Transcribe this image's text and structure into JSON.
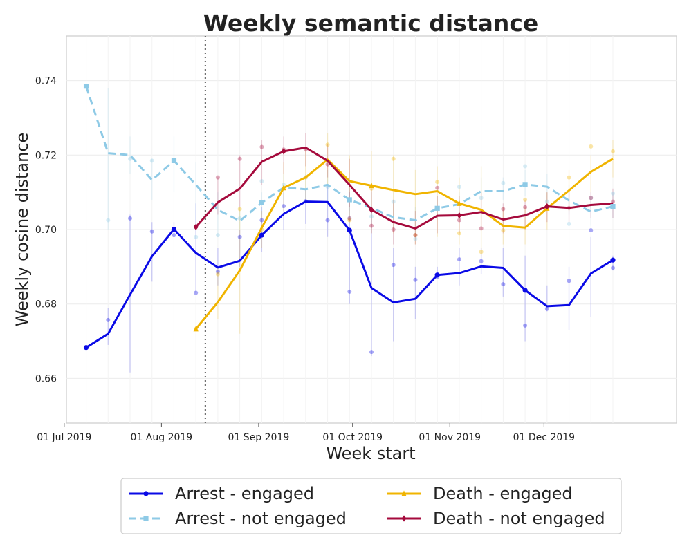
{
  "chart_data": {
    "type": "line",
    "title": "Weekly semantic distance",
    "xlabel": "Week start",
    "ylabel": "Weekly cosine distance",
    "ylim": [
      0.648,
      0.752
    ],
    "yticks": [
      0.66,
      0.68,
      0.7,
      0.72,
      0.74
    ],
    "ytick_labels": [
      "0.66",
      "0.68",
      "0.70",
      "0.72",
      "0.74"
    ],
    "xlim": [
      -0.9,
      26.9
    ],
    "xticks": [
      -1,
      3.43,
      7.86,
      12.14,
      16.57,
      20.86
    ],
    "xtick_labels": [
      "01 Jul 2019",
      "01 Aug 2019",
      "01 Sep 2019",
      "01 Oct 2019",
      "01 Nov 2019",
      "01 Dec 2019"
    ],
    "event_line_x": 5.43,
    "grid": true,
    "legend_position": "bottom-outside",
    "series": [
      {
        "name": "Arrest - engaged",
        "color": "#0a0ae6",
        "dash": "solid",
        "marker": "circle",
        "x": [
          0,
          1,
          2,
          3,
          4,
          5,
          6,
          7,
          8,
          9,
          10,
          11,
          12,
          13,
          14,
          15,
          16,
          17,
          18,
          19,
          20,
          21,
          22,
          23,
          24
        ],
        "values": [
          0.6683,
          0.672,
          0.6825,
          0.6928,
          0.7001,
          0.6937,
          0.6898,
          0.6916,
          0.6985,
          0.7042,
          0.7075,
          0.7074,
          0.6998,
          0.6843,
          0.6804,
          0.6814,
          0.6878,
          0.6883,
          0.6901,
          0.6897,
          0.6837,
          0.6794,
          0.6797,
          0.6882,
          0.6918
        ],
        "markers_x": [
          0,
          4,
          8,
          12,
          16,
          20,
          24
        ],
        "points": [
          0.6683,
          0.6757,
          0.703,
          0.6995,
          0.6985,
          0.683,
          0.6887,
          0.698,
          0.7025,
          0.7063,
          0.7076,
          0.7025,
          0.6833,
          0.6671,
          0.6905,
          0.6865,
          0.6873,
          0.692,
          0.6915,
          0.6853,
          0.6742,
          0.6787,
          0.6862,
          0.6998,
          0.6897
        ],
        "err_low": [
          0.6683,
          0.669,
          0.6616,
          0.686,
          0.698,
          0.683,
          0.685,
          0.69,
          0.694,
          0.7,
          0.7015,
          0.698,
          0.68,
          0.666,
          0.67,
          0.676,
          0.687,
          0.685,
          0.688,
          0.682,
          0.67,
          0.678,
          0.673,
          0.6765,
          0.689
        ],
        "err_high": [
          0.6683,
          0.679,
          0.704,
          0.702,
          0.702,
          0.707,
          0.695,
          0.7,
          0.706,
          0.71,
          0.711,
          0.712,
          0.71,
          0.706,
          0.695,
          0.69,
          0.69,
          0.695,
          0.695,
          0.695,
          0.693,
          0.685,
          0.69,
          0.698,
          0.693
        ]
      },
      {
        "name": "Arrest - not engaged",
        "color": "#8ecae6",
        "dash": "dashed",
        "marker": "square",
        "x": [
          0,
          1,
          2,
          3,
          4,
          5,
          6,
          7,
          8,
          9,
          10,
          11,
          12,
          13,
          14,
          15,
          16,
          17,
          18,
          19,
          20,
          21,
          22,
          23,
          24
        ],
        "values": [
          0.7385,
          0.7205,
          0.72,
          0.7133,
          0.7185,
          0.712,
          0.7053,
          0.7023,
          0.7072,
          0.7113,
          0.7108,
          0.712,
          0.708,
          0.7058,
          0.7033,
          0.7025,
          0.7057,
          0.7068,
          0.7103,
          0.7103,
          0.7121,
          0.7115,
          0.7078,
          0.7048,
          0.7062
        ],
        "markers_x": [
          0,
          4,
          8,
          12,
          16,
          20,
          24
        ],
        "points": [
          0.7385,
          0.7025,
          0.719,
          0.7185,
          0.7185,
          0.698,
          0.6985,
          0.703,
          0.713,
          0.712,
          0.714,
          0.7115,
          0.703,
          0.7035,
          0.7075,
          0.6975,
          0.7055,
          0.7115,
          0.7085,
          0.7125,
          0.717,
          0.7075,
          0.7015,
          0.7085,
          0.7097
        ],
        "err_low": [
          0.7385,
          0.7,
          0.715,
          0.708,
          0.71,
          0.7,
          0.698,
          0.7,
          0.704,
          0.708,
          0.707,
          0.708,
          0.705,
          0.702,
          0.7,
          0.699,
          0.703,
          0.704,
          0.708,
          0.708,
          0.709,
          0.708,
          0.704,
          0.701,
          0.703
        ],
        "err_high": [
          0.7385,
          0.738,
          0.725,
          0.719,
          0.725,
          0.718,
          0.71,
          0.706,
          0.71,
          0.715,
          0.715,
          0.716,
          0.712,
          0.71,
          0.707,
          0.706,
          0.709,
          0.71,
          0.714,
          0.714,
          0.716,
          0.715,
          0.712,
          0.708,
          0.71
        ]
      },
      {
        "name": "Death - engaged",
        "color": "#f0b400",
        "dash": "solid",
        "marker": "triangle",
        "x": [
          5,
          6,
          7,
          8,
          9,
          10,
          11,
          12,
          13,
          14,
          15,
          16,
          17,
          18,
          19,
          20,
          21,
          22,
          23,
          24
        ],
        "values": [
          0.6733,
          0.6805,
          0.689,
          0.7005,
          0.7112,
          0.714,
          0.7188,
          0.713,
          0.7118,
          0.7106,
          0.7095,
          0.7103,
          0.707,
          0.7053,
          0.701,
          0.7005,
          0.7057,
          0.7105,
          0.7155,
          0.719
        ],
        "markers_x": [
          5,
          9,
          13,
          17,
          21
        ],
        "points": [
          0.6733,
          0.688,
          0.7055,
          0.7,
          0.721,
          0.714,
          0.7228,
          0.7025,
          0.711,
          0.719,
          0.6985,
          0.7128,
          0.699,
          0.694,
          0.6998,
          0.708,
          0.7063,
          0.714,
          0.7223,
          0.721
        ],
        "err_low": [
          0.6733,
          0.676,
          0.672,
          0.695,
          0.705,
          0.708,
          0.712,
          0.702,
          0.699,
          0.699,
          0.696,
          0.698,
          0.696,
          0.693,
          0.696,
          0.696,
          0.7,
          0.705,
          0.71,
          0.714
        ],
        "err_high": [
          0.6733,
          0.69,
          0.706,
          0.705,
          0.718,
          0.722,
          0.726,
          0.72,
          0.721,
          0.72,
          0.716,
          0.717,
          0.714,
          0.717,
          0.706,
          0.706,
          0.71,
          0.716,
          0.72,
          0.724
        ]
      },
      {
        "name": "Death - not engaged",
        "color": "#a50a3c",
        "dash": "solid",
        "marker": "diamond",
        "x": [
          5,
          6,
          7,
          8,
          9,
          10,
          11,
          12,
          13,
          14,
          15,
          16,
          17,
          18,
          19,
          20,
          21,
          22,
          23,
          24
        ],
        "values": [
          0.7007,
          0.7073,
          0.711,
          0.7182,
          0.721,
          0.722,
          0.7185,
          0.712,
          0.7053,
          0.702,
          0.7003,
          0.7037,
          0.7038,
          0.7047,
          0.7027,
          0.7038,
          0.7062,
          0.7058,
          0.7066,
          0.707
        ],
        "markers_x": [
          5,
          9,
          13,
          17,
          21
        ],
        "points": [
          0.7007,
          0.714,
          0.719,
          0.7222,
          0.7215,
          0.7215,
          0.7175,
          0.703,
          0.701,
          0.7,
          0.6985,
          0.7112,
          0.7025,
          0.7003,
          0.7055,
          0.706,
          0.7062,
          0.7058,
          0.7085,
          0.7075
        ],
        "err_low": [
          0.7007,
          0.704,
          0.706,
          0.712,
          0.715,
          0.717,
          0.714,
          0.706,
          0.699,
          0.696,
          0.696,
          0.699,
          0.699,
          0.7,
          0.699,
          0.7,
          0.702,
          0.702,
          0.703,
          0.703
        ],
        "err_high": [
          0.7007,
          0.714,
          0.72,
          0.724,
          0.725,
          0.726,
          0.723,
          0.719,
          0.711,
          0.708,
          0.705,
          0.709,
          0.709,
          0.71,
          0.707,
          0.708,
          0.71,
          0.71,
          0.71,
          0.711
        ]
      }
    ]
  }
}
